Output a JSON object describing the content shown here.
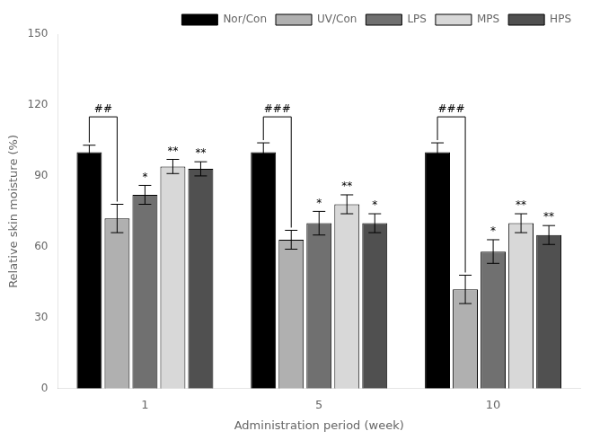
{
  "chart_data": {
    "type": "bar",
    "xlabel": "Administration period (week)",
    "ylabel": "Relative skin moisture (%)",
    "categories": [
      "1",
      "5",
      "10"
    ],
    "series": [
      {
        "name": "Nor/Con",
        "color": "#000000",
        "values": [
          100,
          100,
          100
        ],
        "errors": [
          3,
          4,
          4
        ]
      },
      {
        "name": "UV/Con",
        "color": "#b0b0b0",
        "values": [
          72,
          63,
          42
        ],
        "errors": [
          6,
          4,
          6
        ]
      },
      {
        "name": "LPS",
        "color": "#707070",
        "values": [
          82,
          70,
          58
        ],
        "errors": [
          4,
          5,
          5
        ]
      },
      {
        "name": "MPS",
        "color": "#d8d8d8",
        "values": [
          94,
          78,
          70
        ],
        "errors": [
          3,
          4,
          4
        ]
      },
      {
        "name": "HPS",
        "color": "#505050",
        "values": [
          93,
          70,
          65
        ],
        "errors": [
          3,
          4,
          4
        ]
      }
    ],
    "ylim": [
      0,
      150
    ],
    "yticks": [
      0,
      30,
      60,
      90,
      120,
      150
    ],
    "grid": false,
    "legend": "upper right",
    "annotations": [
      {
        "text": "*",
        "category": "1",
        "series": "LPS"
      },
      {
        "text": "**",
        "category": "1",
        "series": "MPS"
      },
      {
        "text": "**",
        "category": "1",
        "series": "HPS"
      },
      {
        "text": "*",
        "category": "5",
        "series": "LPS"
      },
      {
        "text": "**",
        "category": "5",
        "series": "MPS"
      },
      {
        "text": "*",
        "category": "5",
        "series": "HPS"
      },
      {
        "text": "*",
        "category": "10",
        "series": "LPS"
      },
      {
        "text": "**",
        "category": "10",
        "series": "MPS"
      },
      {
        "text": "**",
        "category": "10",
        "series": "HPS"
      }
    ],
    "brackets": [
      {
        "text": "##",
        "category": "1",
        "from": "Nor/Con",
        "to": "UV/Con",
        "y": 115
      },
      {
        "text": "###",
        "category": "5",
        "from": "Nor/Con",
        "to": "UV/Con",
        "y": 115
      },
      {
        "text": "###",
        "category": "10",
        "from": "Nor/Con",
        "to": "UV/Con",
        "y": 115
      }
    ]
  }
}
